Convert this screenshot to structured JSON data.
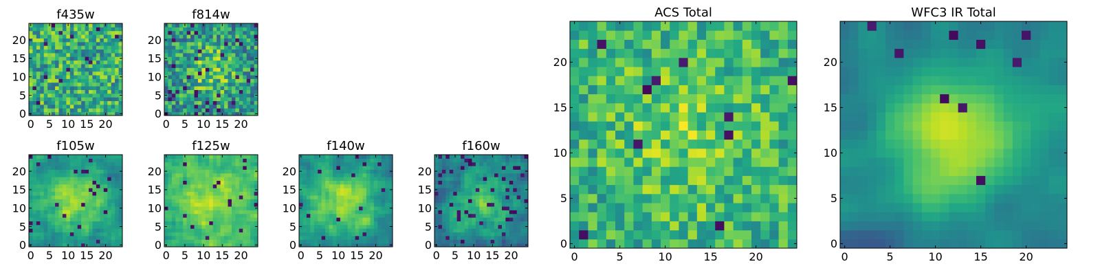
{
  "colormap": "viridis",
  "chart_data": [
    {
      "type": "heatmap",
      "title": "f435w",
      "grid_size": 25,
      "xticks": [
        0,
        5,
        10,
        15,
        20
      ],
      "yticks": [
        0,
        5,
        10,
        15,
        20
      ],
      "xlim": [
        0,
        24
      ],
      "ylim": [
        0,
        24
      ],
      "seed": 11,
      "profile": {
        "sigma": 0,
        "amp": 0.0,
        "base": 0.62,
        "noise": 0.55,
        "smooth": 0,
        "dark": 0.03
      }
    },
    {
      "type": "heatmap",
      "title": "f814w",
      "grid_size": 25,
      "xticks": [
        0,
        5,
        10,
        15,
        20
      ],
      "yticks": [
        0,
        5,
        10,
        15,
        20
      ],
      "xlim": [
        0,
        24
      ],
      "ylim": [
        0,
        24
      ],
      "seed": 23,
      "profile": {
        "sigma": 5,
        "amp": 0.25,
        "base": 0.52,
        "noise": 0.55,
        "smooth": 0,
        "dark": 0.05
      }
    },
    {
      "type": "heatmap",
      "title": "f105w",
      "grid_size": 25,
      "xticks": [
        0,
        5,
        10,
        15,
        20
      ],
      "yticks": [
        0,
        5,
        10,
        15,
        20
      ],
      "xlim": [
        0,
        24
      ],
      "ylim": [
        0,
        24
      ],
      "seed": 37,
      "profile": {
        "sigma": 6,
        "amp": 0.35,
        "base": 0.5,
        "noise": 0.35,
        "smooth": 1,
        "dark": 0.04
      }
    },
    {
      "type": "heatmap",
      "title": "f125w",
      "grid_size": 25,
      "xticks": [
        0,
        5,
        10,
        15,
        20
      ],
      "yticks": [
        0,
        5,
        10,
        15,
        20
      ],
      "xlim": [
        0,
        24
      ],
      "ylim": [
        0,
        24
      ],
      "seed": 41,
      "profile": {
        "sigma": 7,
        "amp": 0.25,
        "base": 0.62,
        "noise": 0.35,
        "smooth": 1,
        "dark": 0.02
      }
    },
    {
      "type": "heatmap",
      "title": "f140w",
      "grid_size": 25,
      "xticks": [
        0,
        5,
        10,
        15,
        20
      ],
      "yticks": [
        0,
        5,
        10,
        15,
        20
      ],
      "xlim": [
        0,
        24
      ],
      "ylim": [
        0,
        24
      ],
      "seed": 53,
      "profile": {
        "sigma": 6,
        "amp": 0.35,
        "base": 0.5,
        "noise": 0.35,
        "smooth": 1,
        "dark": 0.03
      }
    },
    {
      "type": "heatmap",
      "title": "f160w",
      "grid_size": 25,
      "xticks": [
        0,
        5,
        10,
        15,
        20
      ],
      "yticks": [
        0,
        5,
        10,
        15,
        20
      ],
      "xlim": [
        0,
        24
      ],
      "ylim": [
        0,
        24
      ],
      "seed": 67,
      "profile": {
        "sigma": 6,
        "amp": 0.3,
        "base": 0.42,
        "noise": 0.4,
        "smooth": 1,
        "dark": 0.06
      }
    },
    {
      "type": "heatmap",
      "title": "ACS Total",
      "grid_size": 25,
      "xticks": [
        0,
        5,
        10,
        15,
        20
      ],
      "yticks": [
        0,
        5,
        10,
        15,
        20
      ],
      "xlim": [
        0,
        24
      ],
      "ylim": [
        0,
        24
      ],
      "seed": 79,
      "profile": {
        "sigma": 6,
        "amp": 0.15,
        "base": 0.64,
        "noise": 0.42,
        "smooth": 0,
        "dark": 0.025
      }
    },
    {
      "type": "heatmap",
      "title": "WFC3 IR Total",
      "grid_size": 25,
      "xticks": [
        0,
        5,
        10,
        15,
        20
      ],
      "yticks": [
        0,
        5,
        10,
        15,
        20
      ],
      "xlim": [
        0,
        24
      ],
      "ylim": [
        0,
        24
      ],
      "seed": 97,
      "profile": {
        "sigma": 5,
        "amp": 0.45,
        "base": 0.45,
        "noise": 0.2,
        "smooth": 2,
        "dark": 0.015
      }
    }
  ]
}
